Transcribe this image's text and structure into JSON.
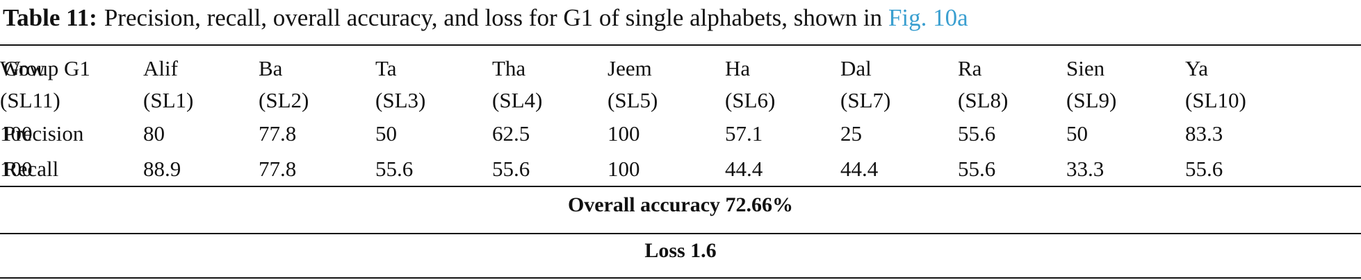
{
  "caption": {
    "label": "Table 11:",
    "text": "Precision, recall, overall accuracy, and loss for G1 of single alphabets, shown in",
    "link": "Fig. 10a"
  },
  "table": {
    "header": [
      {
        "name": "Group G1",
        "code": null
      },
      {
        "name": "Alif",
        "code": "(SL1)"
      },
      {
        "name": "Ba",
        "code": "(SL2)"
      },
      {
        "name": "Ta",
        "code": "(SL3)"
      },
      {
        "name": "Tha",
        "code": "(SL4)"
      },
      {
        "name": "Jeem",
        "code": "(SL5)"
      },
      {
        "name": "Ha",
        "code": "(SL6)"
      },
      {
        "name": "Dal",
        "code": "(SL7)"
      },
      {
        "name": "Ra",
        "code": "(SL8)"
      },
      {
        "name": "Sien",
        "code": "(SL9)"
      },
      {
        "name": "Ya",
        "code": "(SL10)"
      },
      {
        "name": "Wow",
        "code": "(SL11)"
      }
    ],
    "rows": [
      [
        "Precision",
        "80",
        "77.8",
        "50",
        "62.5",
        "100",
        "57.1",
        "25",
        "55.6",
        "50",
        "83.3",
        "100"
      ],
      [
        "Recall",
        "88.9",
        "77.8",
        "55.6",
        "55.6",
        "100",
        "44.4",
        "44.4",
        "55.6",
        "33.3",
        "55.6",
        "100"
      ]
    ],
    "footer": [
      "Overall accuracy 72.66%",
      "Loss 1.6"
    ]
  }
}
